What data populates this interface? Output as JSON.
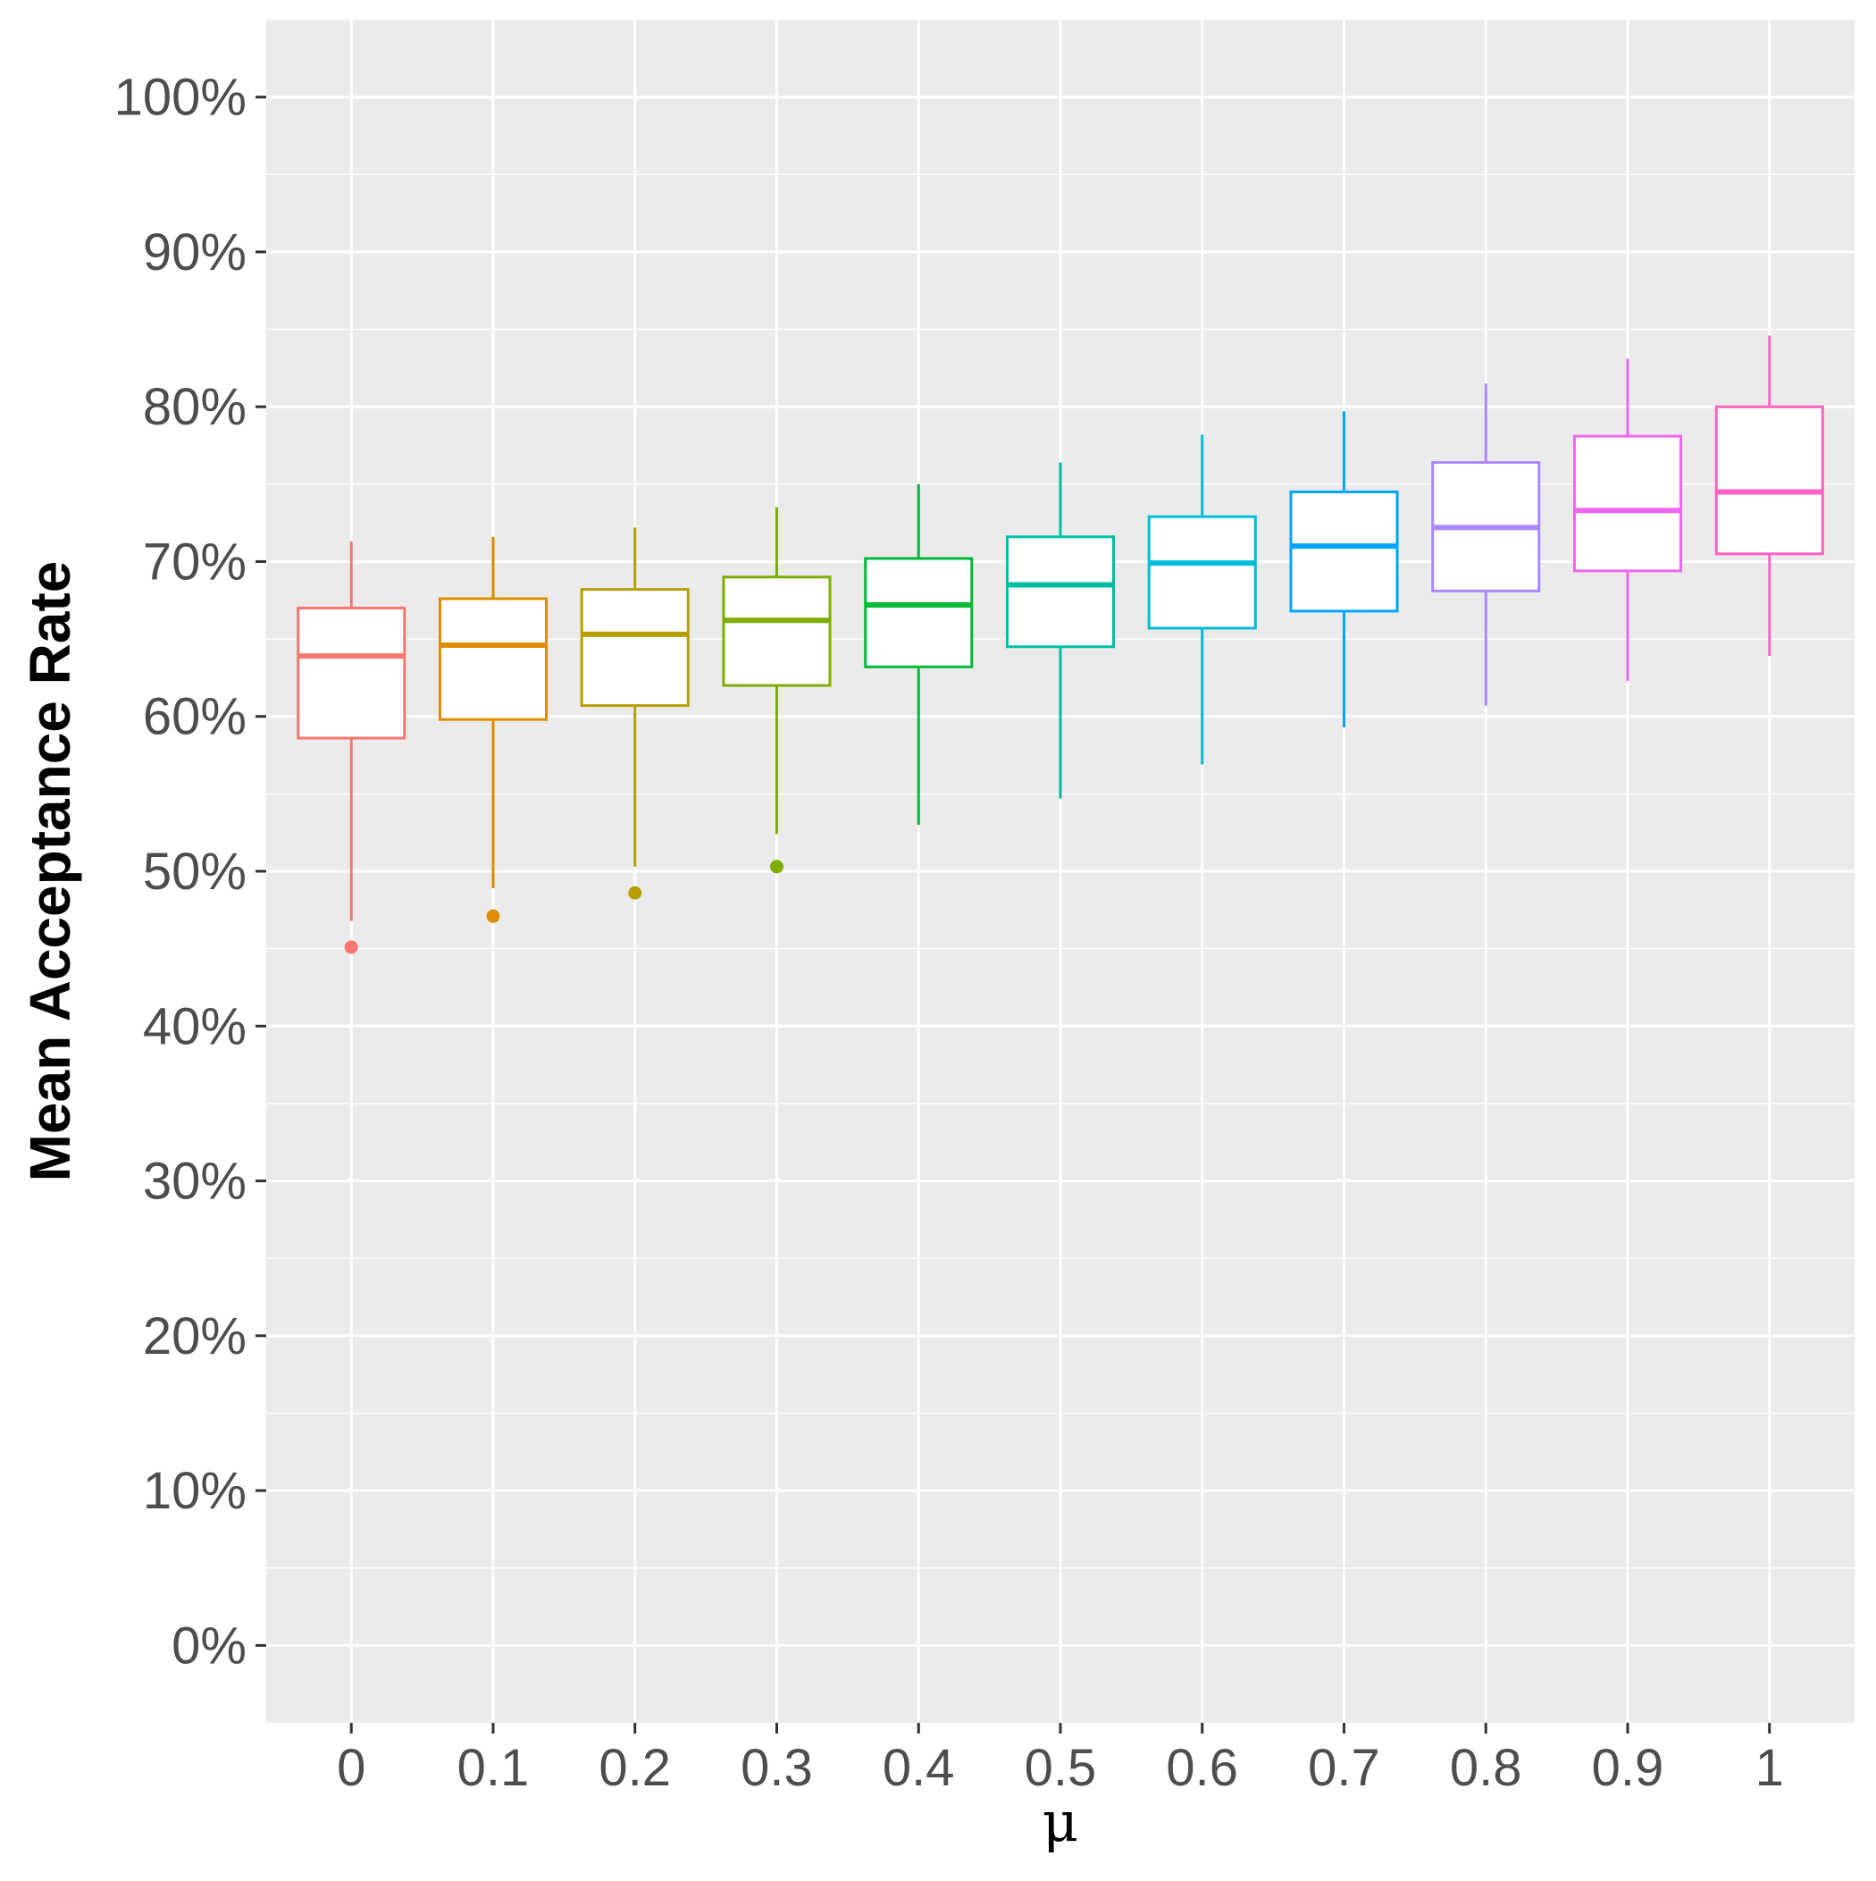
{
  "chart_data": {
    "type": "boxplot",
    "title": "",
    "xlabel": "μ",
    "ylabel": "Mean Acceptance Rate",
    "ylim": [
      -5,
      105
    ],
    "y_ticks": [
      0,
      10,
      20,
      30,
      40,
      50,
      60,
      70,
      80,
      90,
      100
    ],
    "y_tick_labels": [
      "0%",
      "10%",
      "20%",
      "30%",
      "40%",
      "50%",
      "60%",
      "70%",
      "80%",
      "90%",
      "100%"
    ],
    "grid": true,
    "legend": "none",
    "categories": [
      "0",
      "0.1",
      "0.2",
      "0.3",
      "0.4",
      "0.5",
      "0.6",
      "0.7",
      "0.8",
      "0.9",
      "1"
    ],
    "boxes": [
      {
        "category": "0",
        "color": "#F8766D",
        "whisker_low": 46.8,
        "q1": 58.6,
        "median": 63.9,
        "q3": 67.0,
        "whisker_high": 71.3,
        "outliers": [
          45.1
        ]
      },
      {
        "category": "0.1",
        "color": "#DE8C00",
        "whisker_low": 48.9,
        "q1": 59.8,
        "median": 64.6,
        "q3": 67.6,
        "whisker_high": 71.6,
        "outliers": [
          47.1
        ]
      },
      {
        "category": "0.2",
        "color": "#B79F00",
        "whisker_low": 50.3,
        "q1": 60.7,
        "median": 65.3,
        "q3": 68.2,
        "whisker_high": 72.2,
        "outliers": [
          48.6
        ]
      },
      {
        "category": "0.3",
        "color": "#7CAE00",
        "whisker_low": 52.4,
        "q1": 62.0,
        "median": 66.2,
        "q3": 69.0,
        "whisker_high": 73.5,
        "outliers": [
          50.3
        ]
      },
      {
        "category": "0.4",
        "color": "#00BA38",
        "whisker_low": 53.0,
        "q1": 63.2,
        "median": 67.2,
        "q3": 70.2,
        "whisker_high": 75.0,
        "outliers": []
      },
      {
        "category": "0.5",
        "color": "#00BFA4",
        "whisker_low": 54.7,
        "q1": 64.5,
        "median": 68.5,
        "q3": 71.6,
        "whisker_high": 76.4,
        "outliers": []
      },
      {
        "category": "0.6",
        "color": "#00BCD8",
        "whisker_low": 56.9,
        "q1": 65.7,
        "median": 69.9,
        "q3": 72.9,
        "whisker_high": 78.2,
        "outliers": []
      },
      {
        "category": "0.7",
        "color": "#00A5FF",
        "whisker_low": 59.3,
        "q1": 66.8,
        "median": 71.0,
        "q3": 74.5,
        "whisker_high": 79.7,
        "outliers": []
      },
      {
        "category": "0.8",
        "color": "#AC88FF",
        "whisker_low": 60.7,
        "q1": 68.1,
        "median": 72.2,
        "q3": 76.4,
        "whisker_high": 81.5,
        "outliers": []
      },
      {
        "category": "0.9",
        "color": "#ED68ED",
        "whisker_low": 62.3,
        "q1": 69.4,
        "median": 73.3,
        "q3": 78.1,
        "whisker_high": 83.1,
        "outliers": []
      },
      {
        "category": "1",
        "color": "#FF61C3",
        "whisker_low": 63.9,
        "q1": 70.5,
        "median": 74.5,
        "q3": 80.0,
        "whisker_high": 84.6,
        "outliers": []
      }
    ],
    "colors": {
      "panel_background": "#EBEBEB",
      "gridline": "#FFFFFF",
      "tick_text": "#4D4D4D",
      "axis_title": "#000000",
      "box_fill": "#FFFFFF"
    }
  }
}
